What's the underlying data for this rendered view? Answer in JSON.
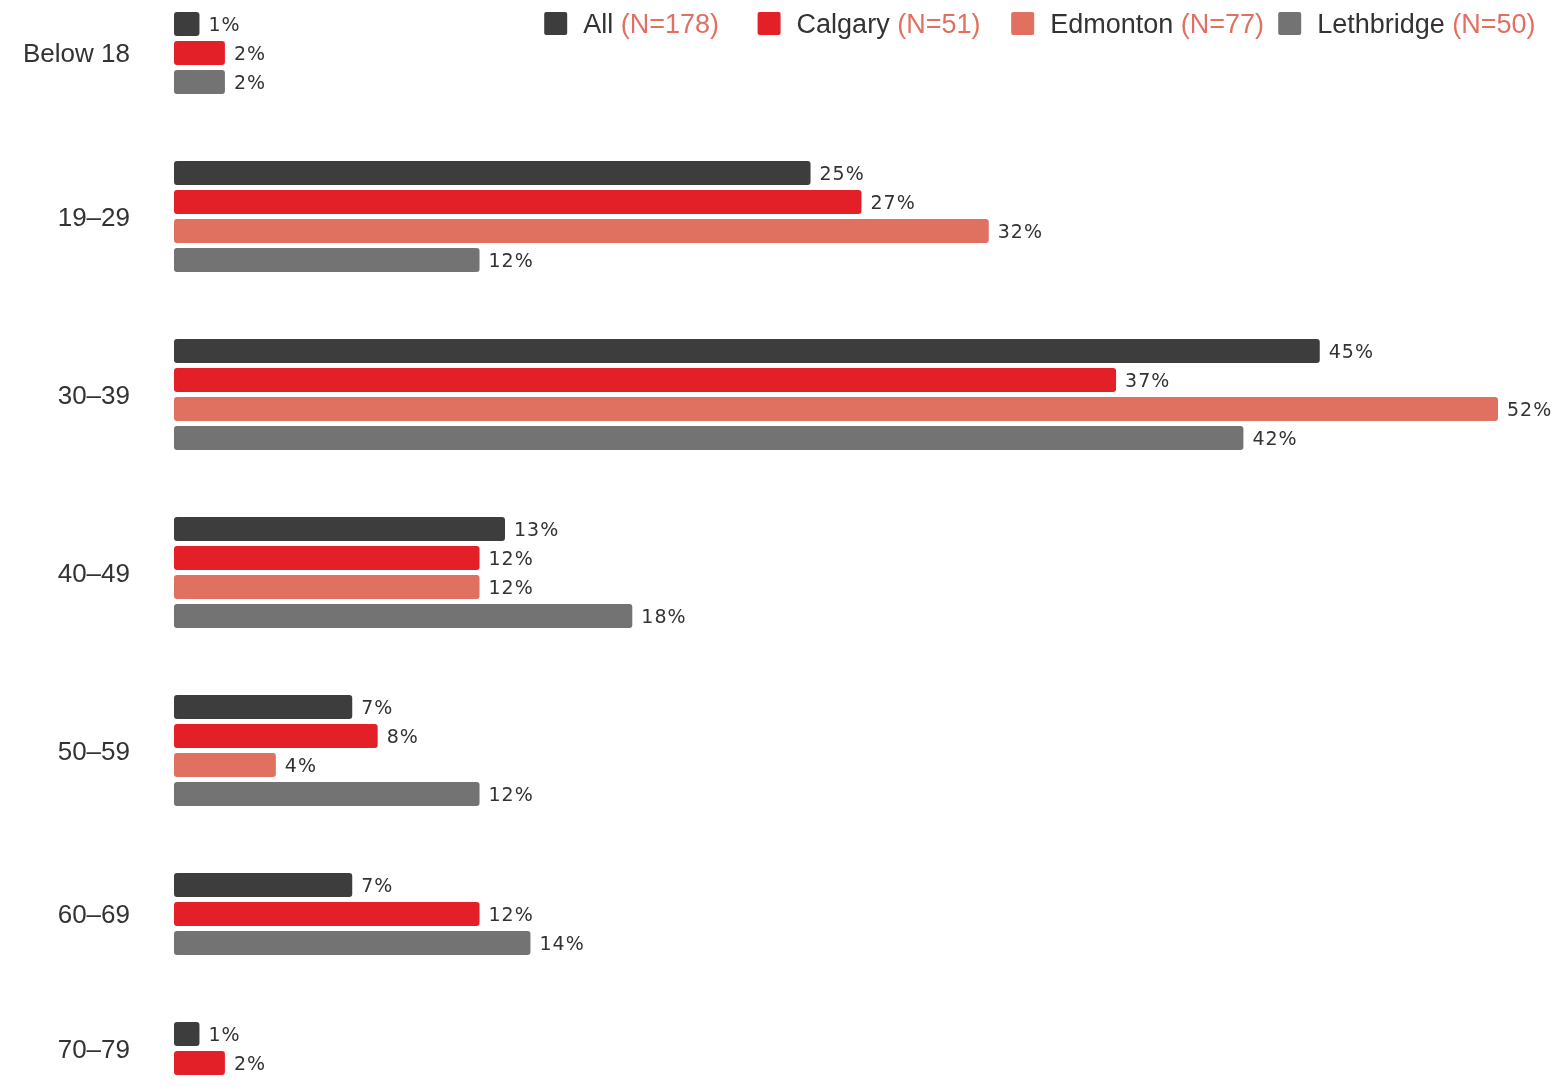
{
  "chart_data": {
    "type": "bar",
    "orientation": "horizontal",
    "legend": "top right",
    "categories": [
      "Below 18",
      "19–29",
      "30–39",
      "40–49",
      "50–59",
      "60–69",
      "70–79"
    ],
    "series": [
      {
        "name": "All (N=178)",
        "color": "#3d3d3d",
        "values": [
          1,
          25,
          45,
          13,
          7,
          7,
          1
        ],
        "value_labels": [
          "1%",
          "25%",
          "45%",
          "13%",
          "7%",
          "7%",
          "1%"
        ]
      },
      {
        "name": "Calgary (N=51)",
        "color": "#e32028",
        "values": [
          2,
          27,
          37,
          12,
          8,
          12,
          2
        ],
        "value_labels": [
          "2%",
          "27%",
          "37%",
          "12%",
          "8%",
          "12%",
          "2%"
        ]
      },
      {
        "name": "Edmonton (N=77)",
        "color": "#e07060",
        "values": [
          null,
          32,
          52,
          12,
          4,
          null,
          null
        ],
        "value_labels": [
          null,
          "32%",
          "52%",
          "12%",
          "4%",
          null,
          null
        ]
      },
      {
        "name": "Lethbridge (N=50)",
        "color": "#737373",
        "values": [
          2,
          12,
          42,
          18,
          12,
          14,
          null
        ],
        "value_labels": [
          "2%",
          "12%",
          "42%",
          "18%",
          "12%",
          "14%",
          null
        ]
      }
    ]
  }
}
